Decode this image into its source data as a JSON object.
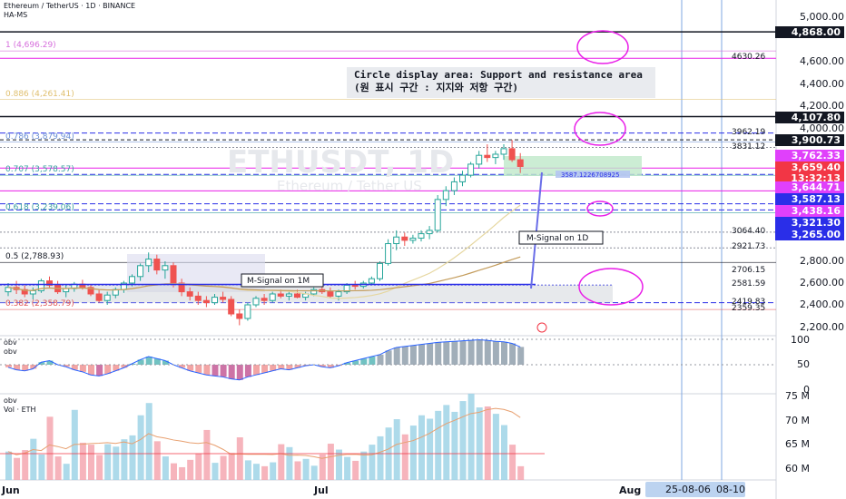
{
  "header": {
    "symbol_line": "Ethereum / TetherUS · 1D · BINANCE",
    "indicator": "HA-MS"
  },
  "watermark": {
    "ticker": "ETHUSDT, 1D",
    "name": "Ethereum / Tether US"
  },
  "annotation": {
    "line1": "Circle display area: Support and resistance area",
    "line2": "(원 표시 구간 : 지지와 저항 구간)"
  },
  "fib_labels": [
    {
      "text": "1 (4,696.29)",
      "value": 4696.29
    },
    {
      "text": "0.886 (4,261.41)",
      "value": 4261.41
    },
    {
      "text": "0.786 (3,879.94)",
      "value": 3879.94
    },
    {
      "text": "0.707 (3,578.57)",
      "value": 3578.57
    },
    {
      "text": "0.618 (3,239.06)",
      "value": 3239.06
    },
    {
      "text": "0.5 (2,788.93)",
      "value": 2788.93
    },
    {
      "text": "0.382 (2,358.79)",
      "value": 2358.79
    }
  ],
  "m_signal_labels": {
    "d1": "M-Signal on 1D",
    "m1": "M-Signal on 1M"
  },
  "price_axis": {
    "ticks": [
      "5,000.00",
      "4,600.00",
      "4,400.00",
      "4,200.00",
      "4,000.00",
      "2,800.00",
      "2,600.00",
      "2,400.00",
      "2,200.00"
    ],
    "levels": [
      "4630.26",
      "3962.19",
      "3831.12",
      "3064.40",
      "2921.73",
      "2706.15",
      "2581.59",
      "2419.83",
      "2359.35"
    ],
    "tags": [
      {
        "text": "4,868.00",
        "bg": "#131722",
        "fg": "#ffffff"
      },
      {
        "text": "4,107.80",
        "bg": "#131722",
        "fg": "#ffffff"
      },
      {
        "text": "3,900.73",
        "bg": "#131722",
        "fg": "#ffffff"
      },
      {
        "text": "3,762.33",
        "bg": "#e040fb",
        "fg": "#ffffff"
      },
      {
        "text": "3,659.40",
        "bg": "#f23645",
        "fg": "#ffffff"
      },
      {
        "text": "13:32:13",
        "bg": "#f23645",
        "fg": "#ffffff"
      },
      {
        "text": "3,644.71",
        "bg": "#e040fb",
        "fg": "#ffffff"
      },
      {
        "text": "3,587.13",
        "bg": "#2a2ee8",
        "fg": "#ffffff"
      },
      {
        "text": "3,438.16",
        "bg": "#e040fb",
        "fg": "#ffffff"
      },
      {
        "text": "3,321.30",
        "bg": "#2a2ee8",
        "fg": "#ffffff"
      },
      {
        "text": "3,265.00",
        "bg": "#2a2ee8",
        "fg": "#ffffff"
      }
    ]
  },
  "position_label": "3587.1226708925",
  "obv_panel": {
    "title": "obv",
    "sub": "obv",
    "ticks": [
      "100",
      "50",
      "0"
    ]
  },
  "vol_panel": {
    "title": "obv",
    "sub": "Vol · ETH",
    "ticks": [
      "75 M",
      "70 M",
      "65 M",
      "60 M"
    ]
  },
  "time_axis": {
    "labels": [
      "Jun",
      "Jul",
      "Aug"
    ],
    "date_tag": "25-08-06",
    "date_tag2": "08-10"
  },
  "colors": {
    "up": "#26a69a",
    "down": "#ef5350",
    "magenta": "#e91ee8",
    "blue": "#2a2ee8"
  },
  "chart_data": {
    "type": "candlestick",
    "title": "Ethereum / TetherUS · 1D · BINANCE",
    "ylim": [
      2200,
      5000
    ],
    "candles": [
      [
        2520,
        2600,
        2480,
        2560
      ],
      [
        2560,
        2620,
        2500,
        2540
      ],
      [
        2540,
        2580,
        2470,
        2500
      ],
      [
        2500,
        2560,
        2450,
        2530
      ],
      [
        2530,
        2640,
        2510,
        2620
      ],
      [
        2620,
        2660,
        2560,
        2580
      ],
      [
        2580,
        2620,
        2500,
        2520
      ],
      [
        2520,
        2580,
        2470,
        2550
      ],
      [
        2550,
        2610,
        2520,
        2590
      ],
      [
        2590,
        2630,
        2540,
        2560
      ],
      [
        2560,
        2590,
        2480,
        2500
      ],
      [
        2500,
        2540,
        2420,
        2440
      ],
      [
        2440,
        2520,
        2400,
        2490
      ],
      [
        2490,
        2560,
        2460,
        2540
      ],
      [
        2540,
        2620,
        2510,
        2600
      ],
      [
        2600,
        2680,
        2570,
        2660
      ],
      [
        2660,
        2780,
        2620,
        2760
      ],
      [
        2760,
        2880,
        2700,
        2820
      ],
      [
        2820,
        2860,
        2680,
        2720
      ],
      [
        2720,
        2800,
        2640,
        2760
      ],
      [
        2760,
        2790,
        2560,
        2600
      ],
      [
        2600,
        2640,
        2480,
        2520
      ],
      [
        2520,
        2560,
        2440,
        2480
      ],
      [
        2480,
        2520,
        2400,
        2440
      ],
      [
        2440,
        2480,
        2380,
        2420
      ],
      [
        2420,
        2500,
        2400,
        2470
      ],
      [
        2470,
        2520,
        2420,
        2450
      ],
      [
        2450,
        2480,
        2300,
        2320
      ],
      [
        2320,
        2360,
        2220,
        2280
      ],
      [
        2280,
        2420,
        2260,
        2400
      ],
      [
        2400,
        2480,
        2380,
        2460
      ],
      [
        2460,
        2500,
        2400,
        2440
      ],
      [
        2440,
        2520,
        2420,
        2500
      ],
      [
        2500,
        2540,
        2460,
        2480
      ],
      [
        2480,
        2520,
        2440,
        2500
      ],
      [
        2500,
        2540,
        2460,
        2470
      ],
      [
        2470,
        2520,
        2440,
        2500
      ],
      [
        2500,
        2560,
        2480,
        2540
      ],
      [
        2540,
        2580,
        2500,
        2520
      ],
      [
        2520,
        2560,
        2460,
        2480
      ],
      [
        2480,
        2540,
        2440,
        2520
      ],
      [
        2520,
        2600,
        2500,
        2580
      ],
      [
        2580,
        2620,
        2540,
        2570
      ],
      [
        2570,
        2620,
        2550,
        2600
      ],
      [
        2600,
        2660,
        2580,
        2640
      ],
      [
        2640,
        2800,
        2620,
        2780
      ],
      [
        2780,
        3000,
        2760,
        2960
      ],
      [
        2960,
        3080,
        2900,
        3020
      ],
      [
        3020,
        3060,
        2940,
        2990
      ],
      [
        2990,
        3040,
        2960,
        3010
      ],
      [
        3010,
        3080,
        2980,
        3050
      ],
      [
        3050,
        3120,
        3000,
        3080
      ],
      [
        3080,
        3400,
        3060,
        3360
      ],
      [
        3360,
        3480,
        3300,
        3440
      ],
      [
        3440,
        3560,
        3400,
        3520
      ],
      [
        3520,
        3620,
        3480,
        3580
      ],
      [
        3580,
        3700,
        3560,
        3680
      ],
      [
        3680,
        3800,
        3640,
        3760
      ],
      [
        3760,
        3860,
        3700,
        3740
      ],
      [
        3740,
        3800,
        3680,
        3770
      ],
      [
        3770,
        3860,
        3720,
        3820
      ],
      [
        3820,
        3900,
        3700,
        3720
      ],
      [
        3720,
        3780,
        3600,
        3659
      ]
    ],
    "obv": [
      45,
      40,
      38,
      42,
      55,
      58,
      50,
      46,
      40,
      36,
      30,
      28,
      32,
      38,
      44,
      52,
      60,
      66,
      62,
      58,
      50,
      44,
      38,
      34,
      30,
      28,
      26,
      22,
      20,
      26,
      30,
      34,
      38,
      42,
      40,
      44,
      48,
      50,
      46,
      44,
      48,
      54,
      58,
      62,
      66,
      70,
      78,
      84,
      86,
      88,
      90,
      92,
      94,
      95,
      96,
      97,
      98,
      99,
      98,
      96,
      95,
      92,
      85
    ],
    "volume": [
      63.8,
      62.5,
      64.1,
      66.4,
      63.2,
      70.9,
      62.8,
      61.3,
      72.3,
      65.6,
      65.2,
      63.1,
      65.3,
      64.8,
      66.3,
      67.1,
      71.2,
      73.7,
      65.9,
      62.8,
      61.4,
      60.6,
      62.1,
      63.4,
      68.2,
      61.5,
      62.9,
      63.5,
      66.7,
      62.0,
      61.3,
      60.8,
      61.6,
      65.3,
      64.7,
      61.8,
      62.3,
      60.9,
      63.2,
      65.4,
      64.2,
      62.7,
      61.9,
      63.8,
      65.2,
      66.9,
      68.7,
      70.4,
      67.3,
      69.1,
      71.2,
      70.5,
      72.1,
      73.3,
      71.9,
      74.1,
      75.6,
      72.8,
      73.0,
      71.5,
      69.2,
      65.2,
      60.8
    ]
  }
}
